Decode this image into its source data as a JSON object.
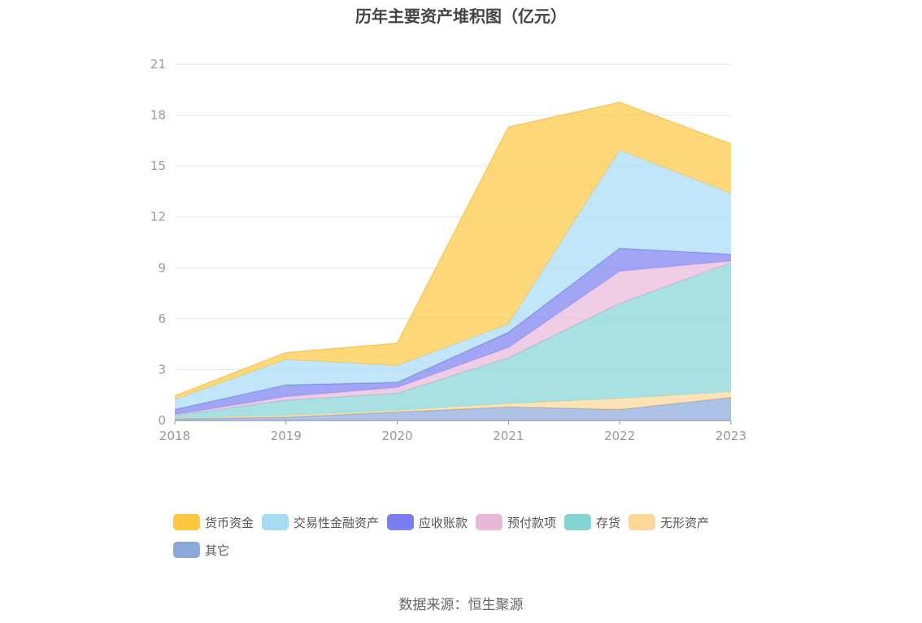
{
  "source": "数据来源：恒生聚源",
  "chart_data": {
    "type": "area",
    "stacked": true,
    "title": "历年主要资产堆积图（亿元）",
    "categories": [
      "2018",
      "2019",
      "2020",
      "2021",
      "2022",
      "2023"
    ],
    "ylim": [
      0,
      21
    ],
    "yticks": [
      "0",
      "3",
      "6",
      "9",
      "12",
      "15",
      "18",
      "21"
    ],
    "grid": true,
    "legend_position": "bottom",
    "series": [
      {
        "name": "其它",
        "color": "#8aa8d8",
        "values": [
          0.1,
          0.2,
          0.5,
          0.8,
          0.65,
          1.35
        ]
      },
      {
        "name": "无形资产",
        "color": "#fdd797",
        "values": [
          0.05,
          0.1,
          0.1,
          0.2,
          0.65,
          0.35
        ]
      },
      {
        "name": "存货",
        "color": "#84d4d6",
        "values": [
          0.15,
          0.9,
          1.0,
          2.7,
          5.6,
          7.6
        ]
      },
      {
        "name": "预付款项",
        "color": "#e8b8d8",
        "values": [
          0.05,
          0.2,
          0.35,
          0.6,
          1.9,
          0.1
        ]
      },
      {
        "name": "应收账款",
        "color": "#7b7ef0",
        "values": [
          0.3,
          0.7,
          0.3,
          0.9,
          1.35,
          0.4
        ]
      },
      {
        "name": "交易性金融资产",
        "color": "#a8dcf6",
        "values": [
          0.6,
          1.5,
          1.0,
          0.5,
          5.8,
          3.6
        ]
      },
      {
        "name": "货币资金",
        "color": "#fdc840",
        "values": [
          0.2,
          0.4,
          1.3,
          11.6,
          2.8,
          2.9
        ]
      }
    ]
  },
  "legend_order": [
    6,
    5,
    4,
    3,
    2,
    1,
    0
  ]
}
